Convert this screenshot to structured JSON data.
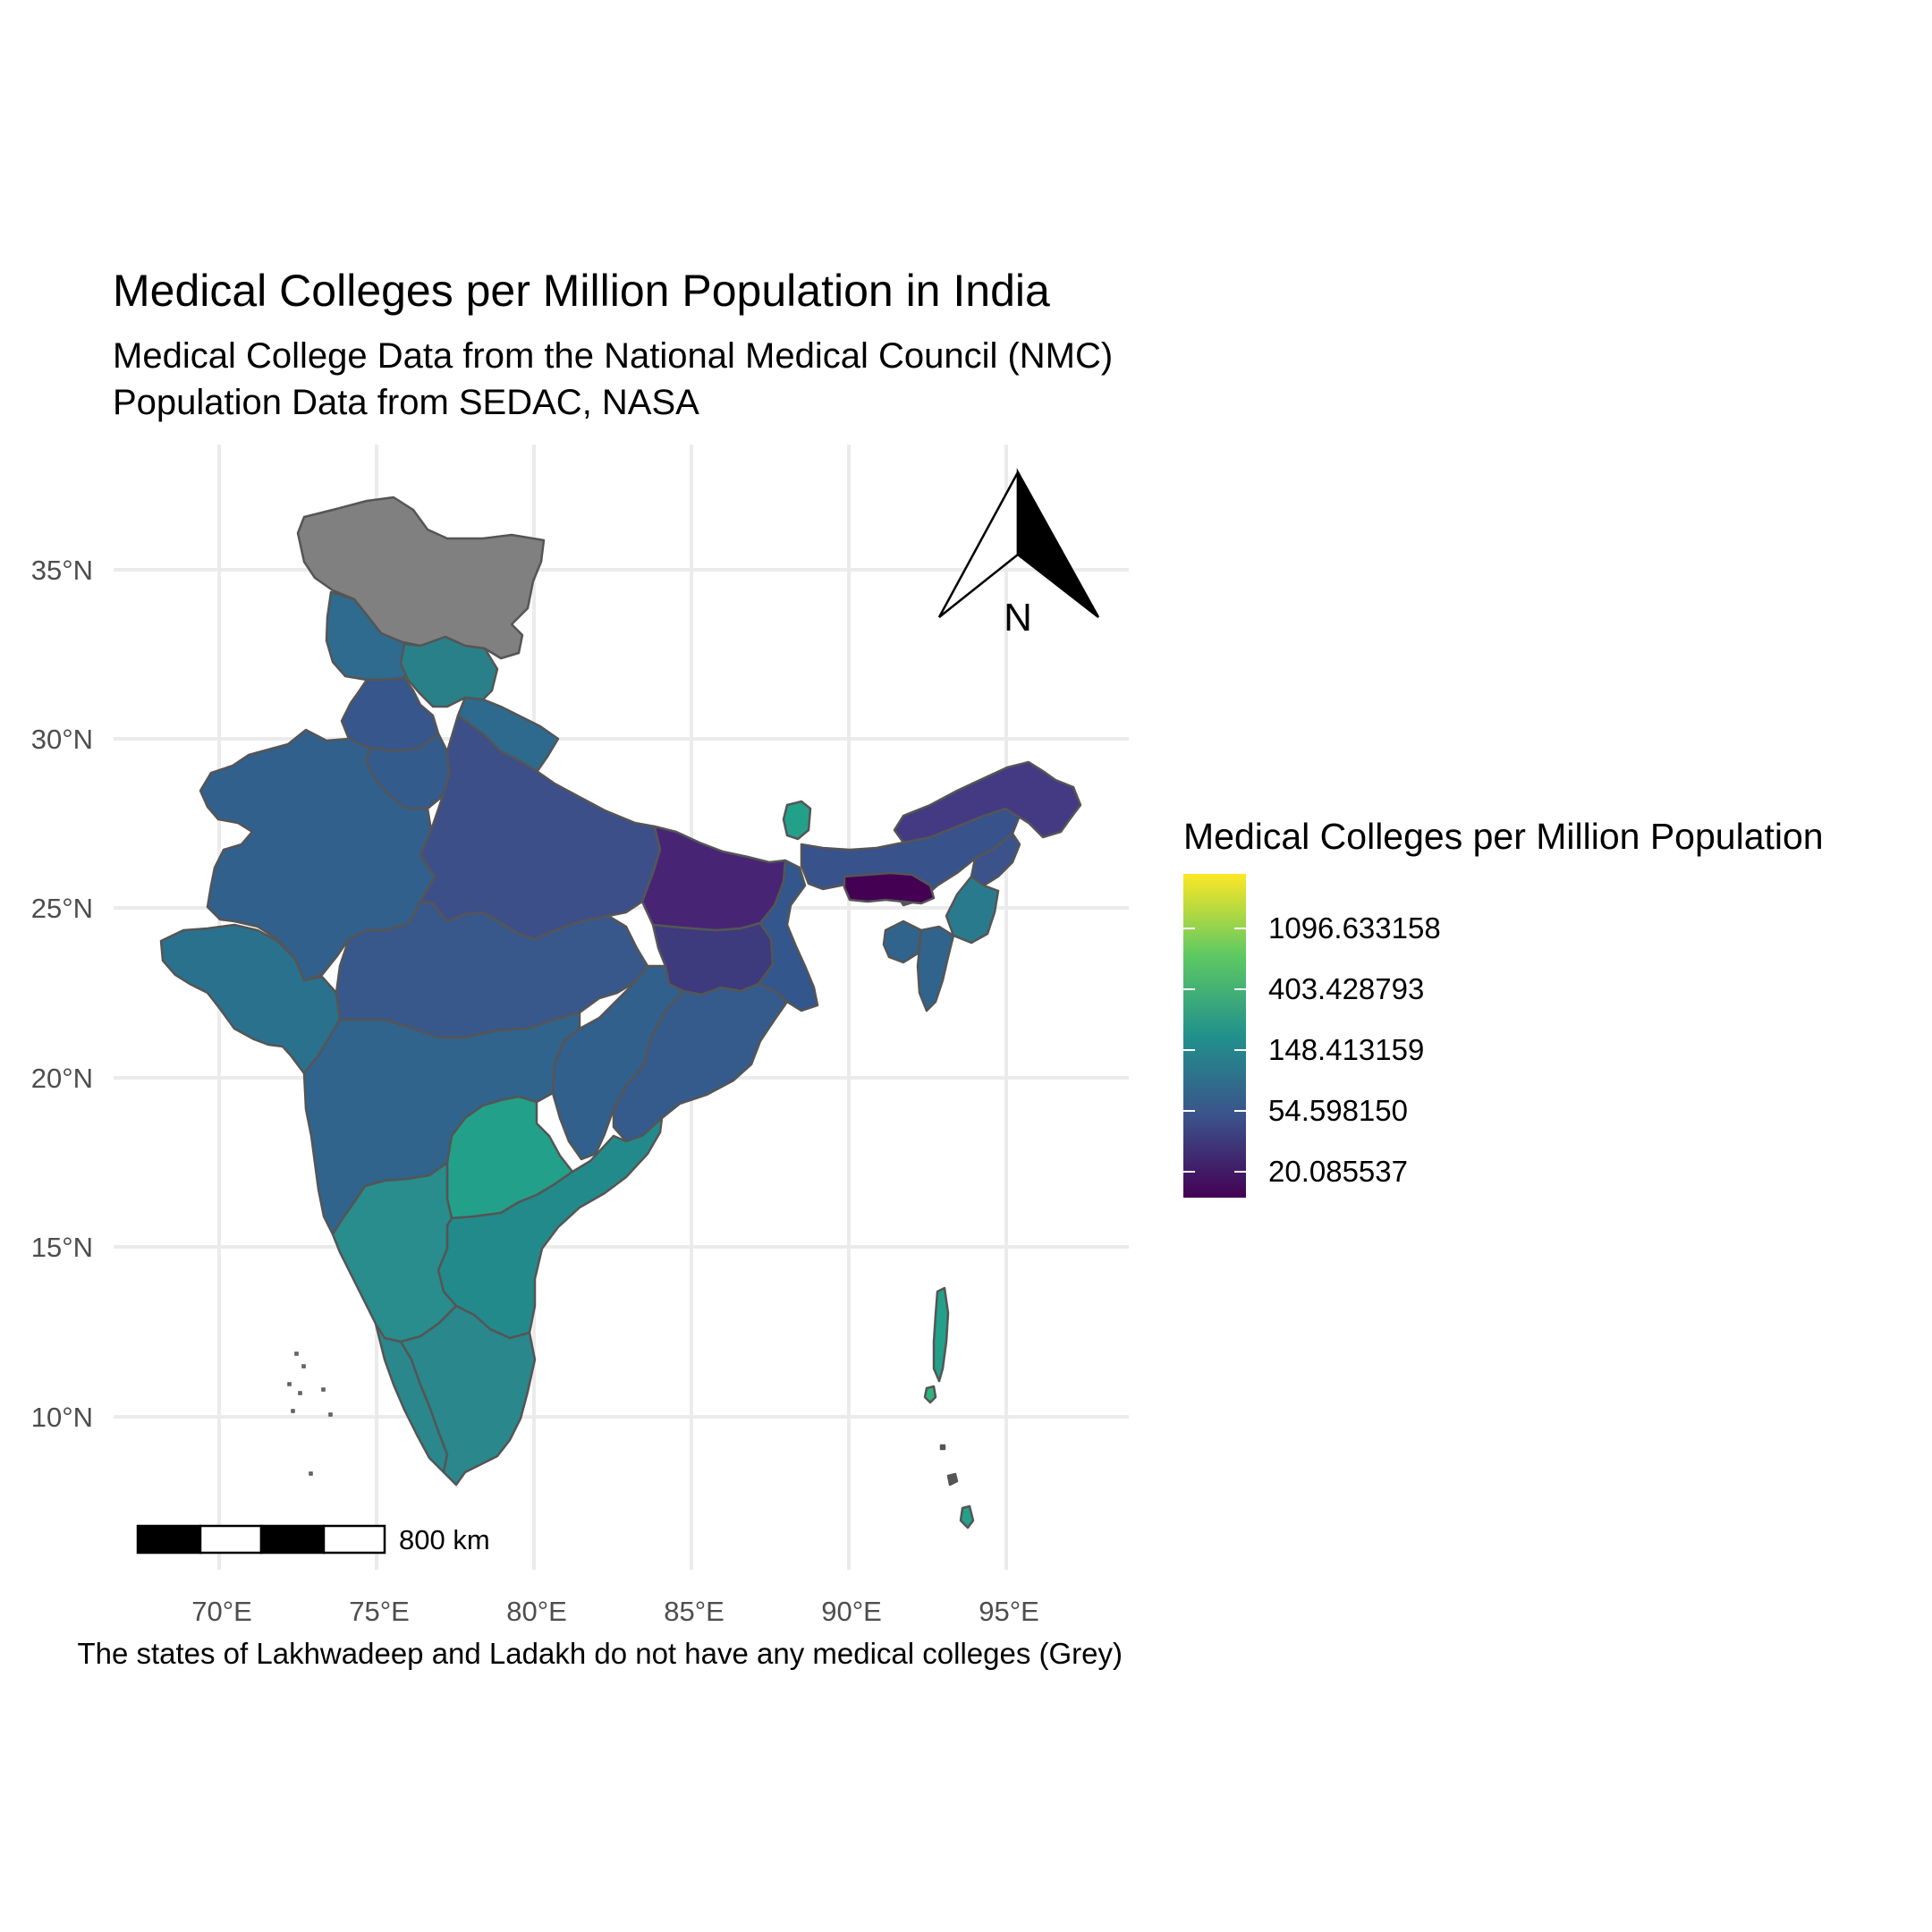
{
  "title": "Medical Colleges per Million Population in India",
  "subtitle_lines": [
    "Medical College Data from the National Medical Council (NMC)",
    "Population Data from SEDAC, NASA"
  ],
  "caption": "The states of Lakhwadeep and Ladakh do not have any medical colleges (Grey)",
  "axes": {
    "lon_ticks": [
      "70°E",
      "75°E",
      "80°E",
      "85°E",
      "90°E",
      "95°E"
    ],
    "lat_ticks": [
      "35°N",
      "30°N",
      "25°N",
      "20°N",
      "15°N",
      "10°N"
    ]
  },
  "legend": {
    "title": "Medical Colleges per Million Population",
    "breaks": [
      "1096.633158",
      "403.428793",
      "148.413159",
      "54.598150",
      "20.085537"
    ],
    "scale": "log",
    "palette": [
      "#fde725",
      "#5ec962",
      "#21918c",
      "#3b528b",
      "#440154"
    ]
  },
  "north_arrow": {
    "label": "N"
  },
  "scale_bar": {
    "label": "800 km"
  },
  "colors": {
    "no_data": "#808080",
    "border": "#555555",
    "grid": "#ebebeb"
  }
}
